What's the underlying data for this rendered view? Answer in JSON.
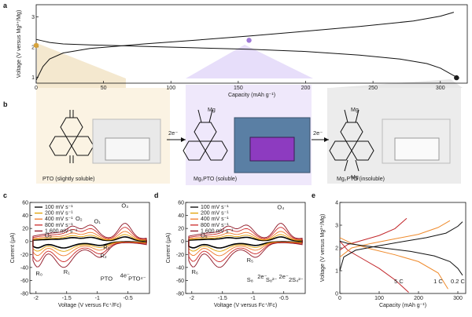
{
  "colors": {
    "gold": "#d6a23a",
    "purple": "#a07ad8",
    "black": "#1c1c1c",
    "c100": "#000000",
    "c200": "#e0a000",
    "c400": "#ef7a2b",
    "c800": "#cc2a2a",
    "c1600": "#8e1423",
    "r5": "#c2262a",
    "r1": "#ef8a2b",
    "r02": "#111111"
  },
  "panel_labels": {
    "a": "a",
    "b": "b",
    "c": "c",
    "d": "d",
    "e": "e"
  },
  "panel_b": {
    "compound1": "PTO (slightly soluble)",
    "compound2": "Mg₁PTO (soluble)",
    "compound3": "Mg₂PTO (insoluble)",
    "arrow1": "2e⁻",
    "arrow2": "2e⁻",
    "mg": "Mg"
  },
  "chart_data": [
    {
      "panel": "a",
      "type": "line",
      "xlabel": "Capacity (mAh g⁻¹)",
      "ylabel": "Voltage (V versus Mg²⁺/Mg)",
      "xlim": [
        0,
        320
      ],
      "ylim": [
        0.8,
        3.4
      ],
      "xticks": [
        0,
        50,
        100,
        150,
        200,
        250,
        300
      ],
      "yticks": [
        1,
        2,
        3
      ],
      "series": [
        {
          "role": "charge",
          "x": [
            0,
            5,
            10,
            20,
            40,
            80,
            120,
            160,
            200,
            240,
            280,
            300,
            310
          ],
          "y": [
            0.9,
            1.35,
            1.6,
            1.8,
            1.95,
            2.1,
            2.23,
            2.37,
            2.52,
            2.68,
            2.86,
            3.02,
            3.15
          ]
        },
        {
          "role": "discharge",
          "x": [
            0,
            5,
            10,
            20,
            40,
            80,
            120,
            160,
            200,
            240,
            270,
            290,
            300,
            310,
            314
          ],
          "y": [
            2.25,
            2.2,
            2.15,
            2.1,
            2.07,
            2.02,
            1.97,
            1.92,
            1.85,
            1.73,
            1.6,
            1.45,
            1.3,
            1.05,
            0.97
          ]
        }
      ],
      "markers": [
        {
          "x": 0,
          "y": 2.05,
          "color": "#d6a23a"
        },
        {
          "x": 158,
          "y": 2.22,
          "color": "#a07ad8"
        },
        {
          "x": 312,
          "y": 0.98,
          "color": "#1c1c1c"
        }
      ]
    },
    {
      "panel": "c",
      "type": "line",
      "xlabel": "Voltage (V versus Fc⁺/Fc)",
      "ylabel": "Current (μA)",
      "xlim": [
        -2.1,
        -0.15
      ],
      "ylim": [
        -80,
        60
      ],
      "xticks": [
        -2.0,
        -1.5,
        -1.0,
        -0.5
      ],
      "yticks": [
        -80,
        -60,
        -40,
        -20,
        0,
        20,
        40,
        60
      ],
      "legend": [
        {
          "label": "100 mV s⁻¹",
          "color": "#000000"
        },
        {
          "label": "200 mV s⁻¹",
          "color": "#e0a000"
        },
        {
          "label": "400 mV s⁻¹",
          "color": "#ef7a2b"
        },
        {
          "label": "800 mV s⁻¹",
          "color": "#cc2a2a"
        },
        {
          "label": "1,600 mV s⁻¹",
          "color": "#8e1423"
        }
      ],
      "scales": [
        0.25,
        0.38,
        0.55,
        0.78,
        1.0
      ],
      "annotations": [
        {
          "text": "O₃",
          "x": -0.55,
          "y": 52
        },
        {
          "text": "O₂",
          "x": -1.3,
          "y": 32
        },
        {
          "text": "O₁",
          "x": -1.0,
          "y": 28
        },
        {
          "text": "O₀",
          "x": -1.8,
          "y": 6
        },
        {
          "text": "R₃",
          "x": -0.85,
          "y": -12
        },
        {
          "text": "R₂",
          "x": -0.9,
          "y": -25
        },
        {
          "text": "R₁",
          "x": -1.5,
          "y": -50
        },
        {
          "text": "R₀",
          "x": -1.95,
          "y": -52
        },
        {
          "text": "PTO",
          "x": -0.85,
          "y": -60
        },
        {
          "text": "4e⁻",
          "x": -0.55,
          "y": -55
        },
        {
          "text": "PTO⁴⁻",
          "x": -0.35,
          "y": -60
        }
      ]
    },
    {
      "panel": "d",
      "type": "line",
      "xlabel": "Voltage (V versus Fc⁺/Fc)",
      "ylabel": "Current (μA)",
      "xlim": [
        -2.1,
        -0.15
      ],
      "ylim": [
        -80,
        60
      ],
      "xticks": [
        -2.0,
        -1.5,
        -1.0,
        -0.5
      ],
      "yticks": [
        -80,
        -60,
        -40,
        -20,
        0,
        20,
        40,
        60
      ],
      "legend": [
        {
          "label": "100 mV s⁻¹",
          "color": "#000000"
        },
        {
          "label": "200 mV s⁻¹",
          "color": "#e0a000"
        },
        {
          "label": "400 mV s⁻¹",
          "color": "#ef7a2b"
        },
        {
          "label": "800 mV s⁻¹",
          "color": "#cc2a2a"
        },
        {
          "label": "1,600 mV s⁻¹",
          "color": "#8e1423"
        }
      ],
      "scales": [
        0.25,
        0.38,
        0.55,
        0.78,
        1.0
      ],
      "annotations": [
        {
          "text": "O₄",
          "x": -0.55,
          "y": 50
        },
        {
          "text": "O₅",
          "x": -1.8,
          "y": 6
        },
        {
          "text": "R₅",
          "x": -1.05,
          "y": -32
        },
        {
          "text": "R₆",
          "x": -1.95,
          "y": -50
        },
        {
          "text": "S₈",
          "x": -1.05,
          "y": -62
        },
        {
          "text": "2e⁻",
          "x": -0.85,
          "y": -57
        },
        {
          "text": "S₈²⁻",
          "x": -0.7,
          "y": -62
        },
        {
          "text": "2e⁻",
          "x": -0.5,
          "y": -57
        },
        {
          "text": "2S₄²⁻",
          "x": -0.3,
          "y": -62
        }
      ]
    },
    {
      "panel": "e",
      "type": "line",
      "xlabel": "Capacity (mAh g⁻¹)",
      "ylabel": "Voltage (V versus Mg²⁺/Mg)",
      "xlim": [
        0,
        320
      ],
      "ylim": [
        0,
        4
      ],
      "xticks": [
        0,
        100,
        200,
        300
      ],
      "yticks": [
        0,
        1,
        2,
        3,
        4
      ],
      "series": [
        {
          "name": "5 C",
          "color": "#c2262a",
          "charge": {
            "x": [
              0,
              20,
              60,
              100,
              140,
              170
            ],
            "y": [
              1.9,
              2.15,
              2.35,
              2.55,
              2.85,
              3.3
            ]
          },
          "discharge": {
            "x": [
              0,
              20,
              60,
              100,
              140,
              175
            ],
            "y": [
              2.3,
              1.9,
              1.5,
              1.1,
              0.6,
              0.05
            ]
          }
        },
        {
          "name": "1 C",
          "color": "#ef8a2b",
          "charge": {
            "x": [
              0,
              30,
              80,
              140,
              200,
              250,
              280
            ],
            "y": [
              1.6,
              2.0,
              2.2,
              2.4,
              2.6,
              2.9,
              3.2
            ]
          },
          "discharge": {
            "x": [
              0,
              30,
              80,
              140,
              200,
              250,
              275
            ],
            "y": [
              2.45,
              2.2,
              1.95,
              1.7,
              1.4,
              0.9,
              0.2
            ]
          }
        },
        {
          "name": "0.2 C",
          "color": "#111111",
          "charge": {
            "x": [
              0,
              10,
              40,
              100,
              160,
              220,
              270,
              300,
              312
            ],
            "y": [
              1.0,
              1.6,
              1.9,
              2.1,
              2.28,
              2.45,
              2.65,
              2.95,
              3.15
            ]
          },
          "discharge": {
            "x": [
              0,
              20,
              60,
              120,
              180,
              240,
              280,
              300,
              312
            ],
            "y": [
              2.3,
              2.2,
              2.1,
              1.98,
              1.85,
              1.65,
              1.4,
              1.1,
              0.8
            ]
          }
        }
      ],
      "labels": [
        {
          "text": "5 C"
        },
        {
          "text": "1 C"
        },
        {
          "text": "0.2 C"
        }
      ]
    }
  ]
}
